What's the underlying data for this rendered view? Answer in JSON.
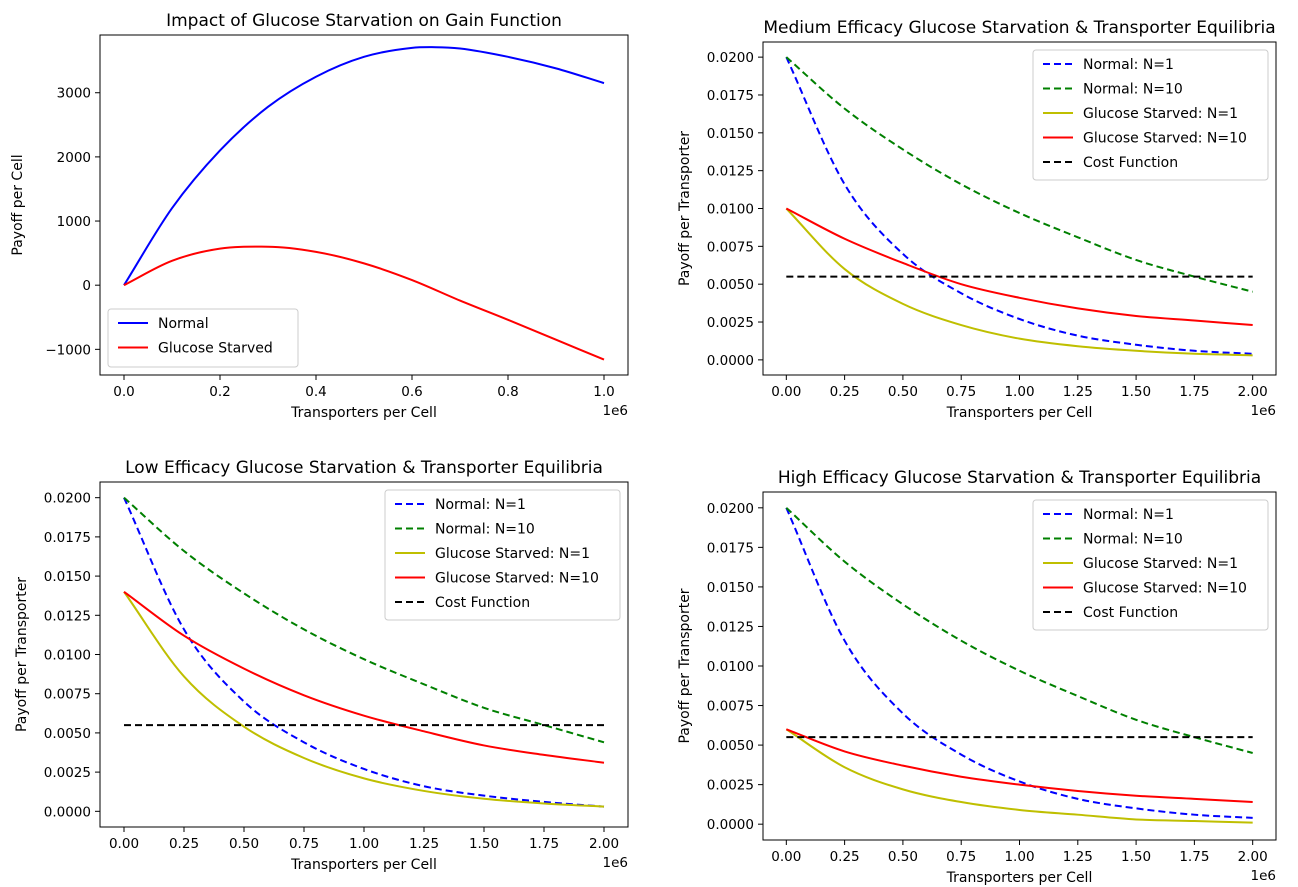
{
  "chart_data": [
    {
      "type": "line",
      "title": "Impact of Glucose Starvation on Gain Function",
      "xlabel": "Transporters per Cell",
      "ylabel": "Payoff per Cell",
      "x_offset_label": "1e6",
      "xlim": [
        -0.05,
        1.05
      ],
      "ylim": [
        -1400,
        3900
      ],
      "xticks": [
        0.0,
        0.2,
        0.4,
        0.6,
        0.8,
        1.0
      ],
      "xtick_labels": [
        "0.0",
        "0.2",
        "0.4",
        "0.6",
        "0.8",
        "1.0"
      ],
      "yticks": [
        -1000,
        0,
        1000,
        2000,
        3000
      ],
      "ytick_labels": [
        "−1000",
        "0",
        "1000",
        "2000",
        "3000"
      ],
      "grid": false,
      "legend": "lower-left",
      "series": [
        {
          "name": "Normal",
          "color": "#0000ff",
          "dash": "solid",
          "x": [
            0.0,
            0.1,
            0.2,
            0.3,
            0.4,
            0.5,
            0.6,
            0.65,
            0.7,
            0.8,
            0.9,
            1.0
          ],
          "y": [
            0,
            1200,
            2100,
            2780,
            3250,
            3560,
            3700,
            3710,
            3690,
            3560,
            3380,
            3150
          ]
        },
        {
          "name": "Glucose Starved",
          "color": "#ff0000",
          "dash": "solid",
          "x": [
            0.0,
            0.1,
            0.2,
            0.3,
            0.4,
            0.5,
            0.6,
            0.7,
            0.8,
            0.9,
            1.0
          ],
          "y": [
            0,
            380,
            570,
            600,
            520,
            340,
            80,
            -240,
            -540,
            -850,
            -1160
          ]
        }
      ]
    },
    {
      "type": "line",
      "title": "Medium Efficacy Glucose Starvation & Transporter Equilibria",
      "xlabel": "Transporters per Cell",
      "ylabel": "Payoff per Transporter",
      "x_offset_label": "1e6",
      "xlim": [
        -0.1,
        2.1
      ],
      "ylim": [
        -0.001,
        0.021
      ],
      "xticks": [
        0.0,
        0.25,
        0.5,
        0.75,
        1.0,
        1.25,
        1.5,
        1.75,
        2.0
      ],
      "xtick_labels": [
        "0.00",
        "0.25",
        "0.50",
        "0.75",
        "1.00",
        "1.25",
        "1.50",
        "1.75",
        "2.00"
      ],
      "yticks": [
        0.0,
        0.0025,
        0.005,
        0.0075,
        0.01,
        0.0125,
        0.015,
        0.0175,
        0.02
      ],
      "ytick_labels": [
        "0.0000",
        "0.0025",
        "0.0050",
        "0.0075",
        "0.0100",
        "0.0125",
        "0.0150",
        "0.0175",
        "0.0200"
      ],
      "grid": false,
      "legend": "top-right",
      "series": [
        {
          "name": "Normal: N=1",
          "color": "#0000ff",
          "dash": "dashed",
          "x": [
            0,
            0.25,
            0.5,
            0.75,
            1.0,
            1.25,
            1.5,
            1.75,
            2.0
          ],
          "y": [
            0.02,
            0.0116,
            0.007,
            0.0044,
            0.0027,
            0.0016,
            0.001,
            0.0006,
            0.0004
          ]
        },
        {
          "name": "Normal: N=10",
          "color": "#008000",
          "dash": "dashed",
          "x": [
            0,
            0.25,
            0.5,
            0.75,
            1.0,
            1.25,
            1.5,
            1.75,
            2.0
          ],
          "y": [
            0.02,
            0.0166,
            0.0139,
            0.0116,
            0.0097,
            0.0081,
            0.0066,
            0.0055,
            0.0045
          ]
        },
        {
          "name": "Glucose Starved: N=1",
          "color": "#bfbf00",
          "dash": "solid",
          "x": [
            0,
            0.25,
            0.5,
            0.75,
            1.0,
            1.25,
            1.5,
            1.75,
            2.0
          ],
          "y": [
            0.01,
            0.006,
            0.0037,
            0.0023,
            0.0014,
            0.0009,
            0.0006,
            0.0004,
            0.0003
          ]
        },
        {
          "name": "Glucose Starved: N=10",
          "color": "#ff0000",
          "dash": "solid",
          "x": [
            0,
            0.25,
            0.5,
            0.75,
            1.0,
            1.25,
            1.5,
            1.75,
            2.0
          ],
          "y": [
            0.01,
            0.008,
            0.0064,
            0.005,
            0.0041,
            0.0034,
            0.0029,
            0.0026,
            0.0023
          ]
        },
        {
          "name": "Cost Function",
          "color": "#000000",
          "dash": "dashed",
          "x": [
            0,
            2.0
          ],
          "y": [
            0.0055,
            0.0055
          ]
        }
      ]
    },
    {
      "type": "line",
      "title": "Low Efficacy Glucose Starvation & Transporter Equilibria",
      "xlabel": "Transporters per Cell",
      "ylabel": "Payoff per Transporter",
      "x_offset_label": "1e6",
      "xlim": [
        -0.1,
        2.1
      ],
      "ylim": [
        -0.001,
        0.021
      ],
      "xticks": [
        0.0,
        0.25,
        0.5,
        0.75,
        1.0,
        1.25,
        1.5,
        1.75,
        2.0
      ],
      "xtick_labels": [
        "0.00",
        "0.25",
        "0.50",
        "0.75",
        "1.00",
        "1.25",
        "1.50",
        "1.75",
        "2.00"
      ],
      "yticks": [
        0.0,
        0.0025,
        0.005,
        0.0075,
        0.01,
        0.0125,
        0.015,
        0.0175,
        0.02
      ],
      "ytick_labels": [
        "0.0000",
        "0.0025",
        "0.0050",
        "0.0075",
        "0.0100",
        "0.0125",
        "0.0150",
        "0.0175",
        "0.0200"
      ],
      "grid": false,
      "legend": "top-right",
      "series": [
        {
          "name": "Normal: N=1",
          "color": "#0000ff",
          "dash": "dashed",
          "x": [
            0,
            0.25,
            0.5,
            0.75,
            1.0,
            1.25,
            1.5,
            1.75,
            2.0
          ],
          "y": [
            0.02,
            0.0116,
            0.007,
            0.0044,
            0.0027,
            0.0016,
            0.001,
            0.0006,
            0.0003
          ]
        },
        {
          "name": "Normal: N=10",
          "color": "#008000",
          "dash": "dashed",
          "x": [
            0,
            0.25,
            0.5,
            0.75,
            1.0,
            1.25,
            1.5,
            1.75,
            2.0
          ],
          "y": [
            0.02,
            0.0166,
            0.0139,
            0.0116,
            0.0097,
            0.0081,
            0.0066,
            0.0055,
            0.0044
          ]
        },
        {
          "name": "Glucose Starved: N=1",
          "color": "#bfbf00",
          "dash": "solid",
          "x": [
            0,
            0.25,
            0.5,
            0.75,
            1.0,
            1.25,
            1.5,
            1.75,
            2.0
          ],
          "y": [
            0.014,
            0.0086,
            0.0054,
            0.0034,
            0.0021,
            0.0013,
            0.0008,
            0.0005,
            0.0003
          ]
        },
        {
          "name": "Glucose Starved: N=10",
          "color": "#ff0000",
          "dash": "solid",
          "x": [
            0,
            0.25,
            0.5,
            0.75,
            1.0,
            1.25,
            1.5,
            1.75,
            2.0
          ],
          "y": [
            0.014,
            0.0112,
            0.0091,
            0.0074,
            0.0061,
            0.0051,
            0.0042,
            0.0036,
            0.0031
          ]
        },
        {
          "name": "Cost Function",
          "color": "#000000",
          "dash": "dashed",
          "x": [
            0,
            2.0
          ],
          "y": [
            0.0055,
            0.0055
          ]
        }
      ]
    },
    {
      "type": "line",
      "title": "High Efficacy Glucose Starvation & Transporter Equilibria",
      "xlabel": "Transporters per Cell",
      "ylabel": "Payoff per Transporter",
      "x_offset_label": "1e6",
      "xlim": [
        -0.1,
        2.1
      ],
      "ylim": [
        -0.001,
        0.021
      ],
      "xticks": [
        0.0,
        0.25,
        0.5,
        0.75,
        1.0,
        1.25,
        1.5,
        1.75,
        2.0
      ],
      "xtick_labels": [
        "0.00",
        "0.25",
        "0.50",
        "0.75",
        "1.00",
        "1.25",
        "1.50",
        "1.75",
        "2.00"
      ],
      "yticks": [
        0.0,
        0.0025,
        0.005,
        0.0075,
        0.01,
        0.0125,
        0.015,
        0.0175,
        0.02
      ],
      "ytick_labels": [
        "0.0000",
        "0.0025",
        "0.0050",
        "0.0075",
        "0.0100",
        "0.0125",
        "0.0150",
        "0.0175",
        "0.0200"
      ],
      "grid": false,
      "legend": "top-right",
      "series": [
        {
          "name": "Normal: N=1",
          "color": "#0000ff",
          "dash": "dashed",
          "x": [
            0,
            0.25,
            0.5,
            0.75,
            1.0,
            1.25,
            1.5,
            1.75,
            2.0
          ],
          "y": [
            0.02,
            0.0116,
            0.007,
            0.0044,
            0.0027,
            0.0016,
            0.001,
            0.0006,
            0.0004
          ]
        },
        {
          "name": "Normal: N=10",
          "color": "#008000",
          "dash": "dashed",
          "x": [
            0,
            0.25,
            0.5,
            0.75,
            1.0,
            1.25,
            1.5,
            1.75,
            2.0
          ],
          "y": [
            0.02,
            0.0166,
            0.0139,
            0.0116,
            0.0097,
            0.0081,
            0.0066,
            0.0055,
            0.0045
          ]
        },
        {
          "name": "Glucose Starved: N=1",
          "color": "#bfbf00",
          "dash": "solid",
          "x": [
            0,
            0.25,
            0.5,
            0.75,
            1.0,
            1.25,
            1.5,
            1.75,
            2.0
          ],
          "y": [
            0.006,
            0.0036,
            0.0022,
            0.0014,
            0.0009,
            0.0006,
            0.0003,
            0.0002,
            0.0001
          ]
        },
        {
          "name": "Glucose Starved: N=10",
          "color": "#ff0000",
          "dash": "solid",
          "x": [
            0,
            0.25,
            0.5,
            0.75,
            1.0,
            1.25,
            1.5,
            1.75,
            2.0
          ],
          "y": [
            0.006,
            0.0046,
            0.0037,
            0.003,
            0.0025,
            0.0021,
            0.0018,
            0.0016,
            0.0014
          ]
        },
        {
          "name": "Cost Function",
          "color": "#000000",
          "dash": "dashed",
          "x": [
            0,
            2.0
          ],
          "y": [
            0.0055,
            0.0055
          ]
        }
      ]
    }
  ]
}
